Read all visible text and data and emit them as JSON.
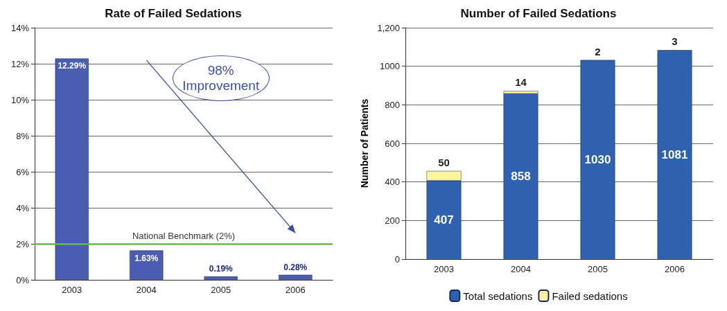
{
  "chart_data": [
    {
      "type": "bar",
      "title": "Rate of Failed Sedations",
      "categories": [
        "2003",
        "2004",
        "2005",
        "2006"
      ],
      "series": [
        {
          "color": "#4a5db0",
          "values": [
            12.29,
            1.63,
            0.19,
            0.28
          ],
          "value_labels": [
            "12.29%",
            "1.63%",
            "0.19%",
            "0.28%"
          ]
        }
      ],
      "ylim": [
        0,
        14
      ],
      "yticks": [
        {
          "value": 0,
          "label": "0%"
        },
        {
          "value": 2,
          "label": "2%"
        },
        {
          "value": 4,
          "label": "4%"
        },
        {
          "value": 6,
          "label": "6%"
        },
        {
          "value": 8,
          "label": "8%"
        },
        {
          "value": 10,
          "label": "10%"
        },
        {
          "value": 12,
          "label": "12%"
        },
        {
          "value": 14,
          "label": "14%"
        }
      ],
      "grid": "y",
      "legend": false,
      "ref_lines": [
        {
          "axis": "y",
          "value": 2,
          "label": "National Benchmark (2%)",
          "color": "#66bb44"
        }
      ],
      "annotations": [
        "98% Improvement"
      ]
    },
    {
      "type": "bar",
      "title": "Number of Failed Sedations",
      "ylabel": "Number of Patients",
      "categories": [
        "2003",
        "2004",
        "2005",
        "2006"
      ],
      "stacked": true,
      "series": [
        {
          "name": "Total sedations",
          "color": "#2e62b0",
          "values": [
            407,
            858,
            1030,
            1081
          ]
        },
        {
          "name": "Failed sedations",
          "color": "#fdf4a0",
          "values": [
            50,
            14,
            2,
            3
          ]
        }
      ],
      "ylim": [
        0,
        1200
      ],
      "yticks": [
        0,
        200,
        400,
        600,
        800,
        1000,
        {
          "value": 1200,
          "label": "1,200"
        }
      ],
      "grid": "y",
      "legend": "bottom",
      "data_labels": true
    }
  ]
}
